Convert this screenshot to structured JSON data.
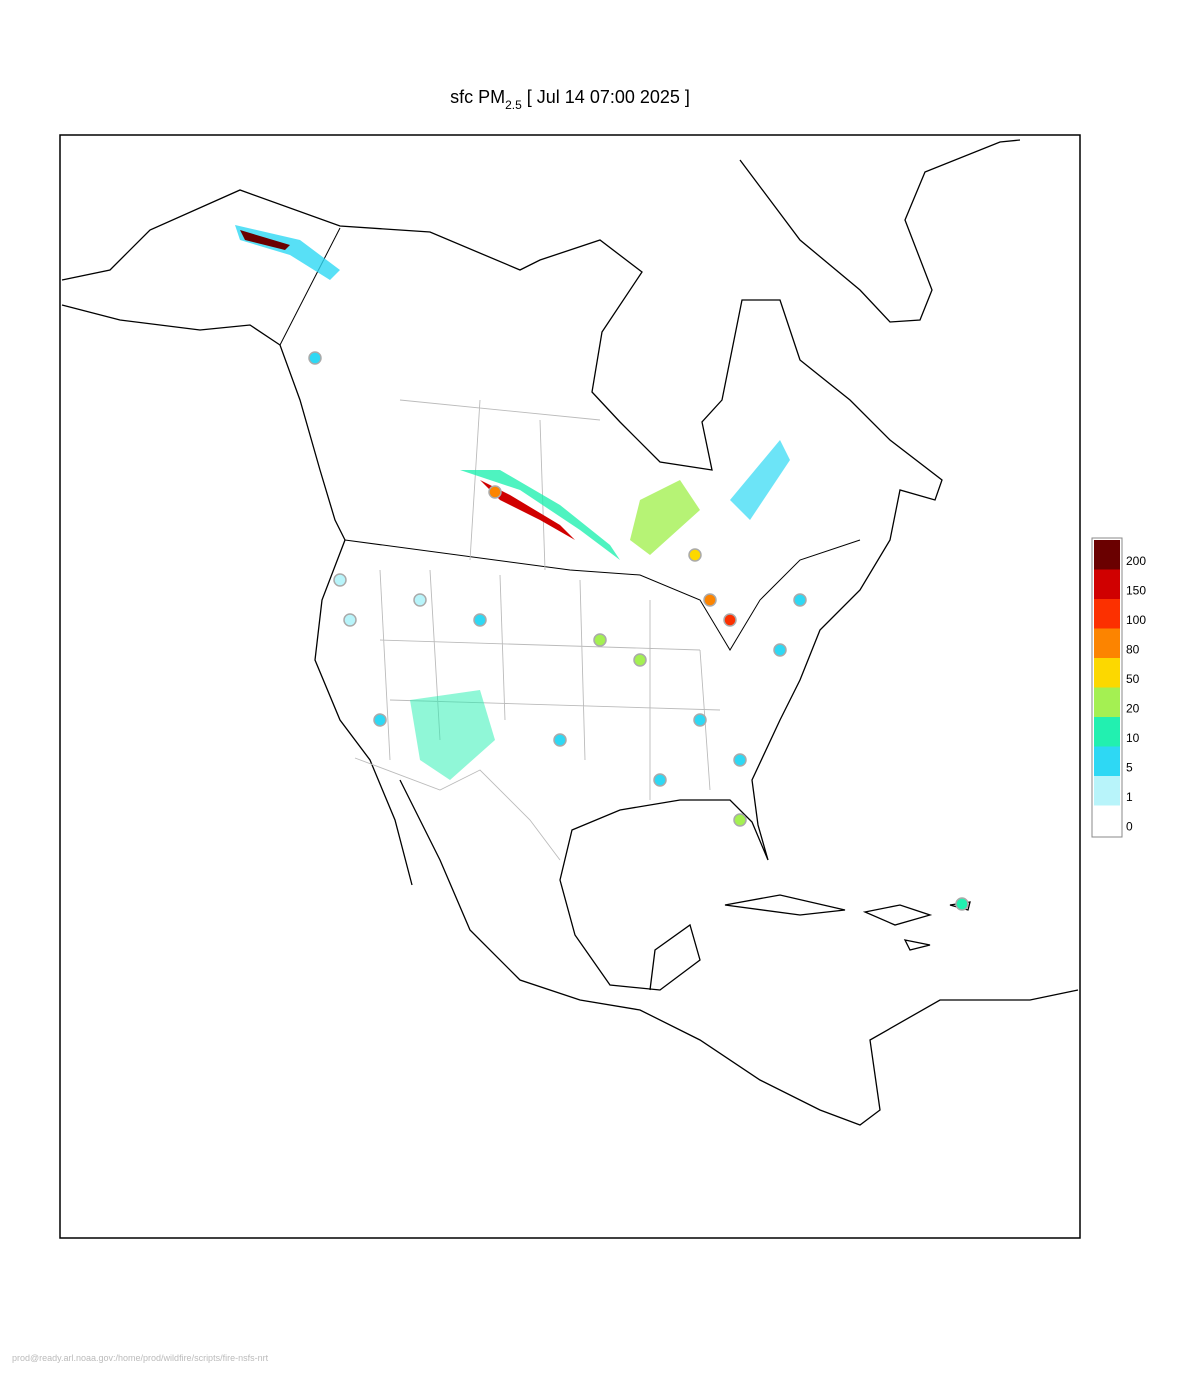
{
  "title": {
    "prefix": "sfc PM",
    "subscript": "2.5",
    "suffix": "[ Jul 14 07:00 2025 ]"
  },
  "legend": {
    "levels": [
      0,
      1,
      5,
      10,
      20,
      50,
      80,
      100,
      150,
      200
    ],
    "colors": [
      "#ffffff",
      "#b8f4fa",
      "#2ed8f4",
      "#22f0b0",
      "#a4f052",
      "#fcd800",
      "#fc8400",
      "#fc3000",
      "#d00000",
      "#6a0000"
    ]
  },
  "footer": "prod@ready.arl.noaa.gov:/home/prod/wildfire/scripts/fire-nsfs-nrt"
}
